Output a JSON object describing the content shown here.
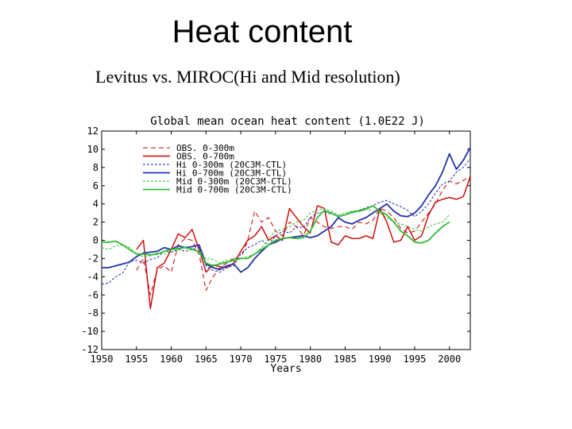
{
  "slide": {
    "title": "Heat content",
    "subtitle": "Levitus vs. MIROC(Hi and Mid resolution)"
  },
  "chart_data": {
    "type": "line",
    "title": "Global mean ocean heat content (1.0E22 J)",
    "xlabel": "Years",
    "ylabel": "",
    "xlim": [
      1950,
      2003
    ],
    "ylim": [
      -12,
      12
    ],
    "xticks": [
      "1950",
      "1955",
      "1960",
      "1965",
      "1970",
      "1975",
      "1980",
      "1985",
      "1990",
      "1995",
      "2000"
    ],
    "yticks": [
      "12",
      "10",
      "8",
      "6",
      "4",
      "2",
      "0",
      "-2",
      "-4",
      "-6",
      "-8",
      "-10",
      "-12"
    ],
    "legend_position": "top-left",
    "series": [
      {
        "name": "OBS. 0-300m",
        "color": "#cc0000",
        "width": 1.0,
        "dash": "6,4",
        "x": [
          1955,
          1956,
          1957,
          1958,
          1959,
          1960,
          1961,
          1962,
          1963,
          1964,
          1965,
          1966,
          1967,
          1968,
          1969,
          1970,
          1971,
          1972,
          1973,
          1974,
          1975,
          1976,
          1977,
          1978,
          1979,
          1980,
          1981,
          1982,
          1983,
          1984,
          1985,
          1986,
          1987,
          1988,
          1989,
          1990,
          1991,
          1992,
          1993,
          1994,
          1995,
          1996,
          1997,
          1998,
          1999,
          2000,
          2001,
          2002,
          2003
        ],
        "y": [
          -3.3,
          -2.0,
          -6.0,
          -3.2,
          -2.8,
          -3.5,
          -0.5,
          0.2,
          0.0,
          -1.5,
          -5.5,
          -4.0,
          -3.0,
          -2.5,
          -2.0,
          -2.0,
          0.0,
          3.2,
          2.0,
          2.5,
          1.0,
          0.5,
          2.0,
          1.5,
          0.5,
          2.5,
          2.0,
          1.5,
          1.3,
          1.5,
          1.5,
          1.2,
          2.0,
          1.8,
          2.2,
          3.5,
          3.2,
          2.5,
          1.3,
          0.8,
          1.0,
          2.0,
          3.0,
          4.0,
          5.5,
          6.5,
          6.2,
          6.6,
          7.0
        ]
      },
      {
        "name": "OBS. 0-700m",
        "color": "#cc0000",
        "width": 1.4,
        "dash": "",
        "x": [
          1955,
          1956,
          1957,
          1958,
          1959,
          1960,
          1961,
          1962,
          1963,
          1964,
          1965,
          1966,
          1967,
          1968,
          1969,
          1970,
          1971,
          1972,
          1973,
          1974,
          1975,
          1976,
          1977,
          1978,
          1979,
          1980,
          1981,
          1982,
          1983,
          1984,
          1985,
          1986,
          1987,
          1988,
          1989,
          1990,
          1991,
          1992,
          1993,
          1994,
          1995,
          1996,
          1997,
          1998,
          1999,
          2000,
          2001,
          2002,
          2003
        ],
        "y": [
          -1.0,
          0.0,
          -7.5,
          -3.0,
          -2.5,
          -1.0,
          0.7,
          0.3,
          1.2,
          -1.0,
          -3.5,
          -2.7,
          -2.9,
          -3.0,
          -2.5,
          -1.2,
          0.0,
          0.5,
          1.5,
          0.0,
          0.5,
          0.0,
          3.5,
          2.5,
          1.5,
          0.8,
          3.8,
          3.5,
          -0.2,
          -0.5,
          0.5,
          0.2,
          0.2,
          0.5,
          0.2,
          3.5,
          2.0,
          -0.2,
          0.0,
          1.5,
          0.0,
          0.5,
          2.8,
          4.2,
          4.5,
          4.7,
          4.5,
          4.8,
          7.0
        ]
      },
      {
        "name": "Hi  0-300m (20C3M-CTL)",
        "color": "#2233aa",
        "width": 1.0,
        "dash": "3,2",
        "x": [
          1950,
          1951,
          1952,
          1953,
          1954,
          1955,
          1956,
          1957,
          1958,
          1959,
          1960,
          1961,
          1962,
          1963,
          1964,
          1965,
          1966,
          1967,
          1968,
          1969,
          1970,
          1971,
          1972,
          1973,
          1974,
          1975,
          1976,
          1977,
          1978,
          1979,
          1980,
          1981,
          1982,
          1983,
          1984,
          1985,
          1986,
          1987,
          1988,
          1989,
          1990,
          1991,
          1992,
          1993,
          1994,
          1995,
          1996,
          1997,
          1998,
          1999,
          2000,
          2001,
          2002,
          2003
        ],
        "y": [
          -4.8,
          -4.7,
          -4.0,
          -3.6,
          -2.3,
          -2.2,
          -2.5,
          -2.1,
          -1.9,
          -1.2,
          -1.3,
          -1.0,
          -1.2,
          -1.0,
          -0.8,
          -2.8,
          -3.3,
          -3.5,
          -3.0,
          -2.8,
          -1.5,
          -0.8,
          -0.5,
          0.0,
          -0.5,
          0.5,
          1.0,
          0.8,
          1.5,
          1.4,
          2.5,
          3.0,
          3.1,
          2.9,
          2.7,
          2.8,
          3.0,
          3.3,
          3.6,
          3.8,
          4.2,
          4.4,
          4.0,
          3.7,
          3.3,
          2.6,
          3.2,
          4.0,
          5.2,
          6.2,
          6.5,
          7.5,
          8.0,
          9.0
        ]
      },
      {
        "name": "Hi  0-700m (20C3M-CTL)",
        "color": "#2233aa",
        "width": 1.8,
        "dash": "",
        "x": [
          1950,
          1951,
          1952,
          1953,
          1954,
          1955,
          1956,
          1957,
          1958,
          1959,
          1960,
          1961,
          1962,
          1963,
          1964,
          1965,
          1966,
          1967,
          1968,
          1969,
          1970,
          1971,
          1972,
          1973,
          1974,
          1975,
          1976,
          1977,
          1978,
          1979,
          1980,
          1981,
          1982,
          1983,
          1984,
          1985,
          1986,
          1987,
          1988,
          1989,
          1990,
          1991,
          1992,
          1993,
          1994,
          1995,
          1996,
          1997,
          1998,
          1999,
          2000,
          2001,
          2002,
          2003
        ],
        "y": [
          -3.0,
          -3.0,
          -2.8,
          -2.6,
          -2.4,
          -1.8,
          -1.4,
          -1.3,
          -1.2,
          -0.8,
          -1.0,
          -0.6,
          -0.8,
          -0.7,
          -0.5,
          -2.6,
          -3.0,
          -3.2,
          -2.8,
          -2.6,
          -3.5,
          -3.0,
          -2.0,
          -1.2,
          -0.5,
          -0.2,
          0.2,
          0.3,
          0.4,
          0.5,
          0.3,
          0.5,
          1.0,
          1.5,
          2.5,
          2.0,
          1.8,
          2.2,
          2.5,
          3.0,
          3.5,
          4.0,
          3.2,
          2.7,
          2.6,
          3.0,
          3.8,
          5.0,
          6.0,
          7.5,
          9.5,
          7.8,
          8.8,
          10.2
        ]
      },
      {
        "name": "Mid 0-300m (20C3M-CTL)",
        "color": "#33bb33",
        "width": 1.0,
        "dash": "3,2",
        "x": [
          1950,
          1951,
          1952,
          1953,
          1954,
          1955,
          1956,
          1957,
          1958,
          1959,
          1960,
          1961,
          1962,
          1963,
          1964,
          1965,
          1966,
          1967,
          1968,
          1969,
          1970,
          1971,
          1972,
          1973,
          1974,
          1975,
          1976,
          1977,
          1978,
          1979,
          1980,
          1981,
          1982,
          1983,
          1984,
          1985,
          1986,
          1987,
          1988,
          1989,
          1990,
          1991,
          1992,
          1993,
          1994,
          1995,
          1996,
          1997,
          1998,
          1999,
          2000
        ],
        "y": [
          -0.8,
          -1.0,
          -0.6,
          -0.5,
          -0.8,
          -1.5,
          -1.8,
          -1.7,
          -1.4,
          -1.5,
          -1.3,
          -1.1,
          -0.8,
          -0.9,
          -1.5,
          -2.0,
          -2.1,
          -2.5,
          -2.2,
          -2.0,
          -2.0,
          -1.8,
          -1.5,
          -0.8,
          0.2,
          1.0,
          1.2,
          1.5,
          2.0,
          2.2,
          3.0,
          3.3,
          3.5,
          3.2,
          2.8,
          3.0,
          3.2,
          3.3,
          3.5,
          3.2,
          3.0,
          2.5,
          2.0,
          1.8,
          1.5,
          1.2,
          1.0,
          1.5,
          1.8,
          2.0,
          2.8
        ]
      },
      {
        "name": "Mid 0-700m (20C3M-CTL)",
        "color": "#33bb33",
        "width": 1.8,
        "dash": "",
        "x": [
          1950,
          1951,
          1952,
          1953,
          1954,
          1955,
          1956,
          1957,
          1958,
          1959,
          1960,
          1961,
          1962,
          1963,
          1964,
          1965,
          1966,
          1967,
          1968,
          1969,
          1970,
          1971,
          1972,
          1973,
          1974,
          1975,
          1976,
          1977,
          1978,
          1979,
          1980,
          1981,
          1982,
          1983,
          1984,
          1985,
          1986,
          1987,
          1988,
          1989,
          1990,
          1991,
          1992,
          1993,
          1994,
          1995,
          1996,
          1997,
          1998,
          1999,
          2000
        ],
        "y": [
          -0.2,
          -0.2,
          -0.1,
          -0.5,
          -1.0,
          -1.5,
          -1.5,
          -1.6,
          -1.5,
          -1.2,
          -1.0,
          -0.9,
          -0.8,
          -1.0,
          -1.2,
          -2.5,
          -2.8,
          -2.6,
          -2.4,
          -2.2,
          -2.0,
          -2.0,
          -1.5,
          -1.0,
          -0.5,
          0.0,
          0.2,
          0.3,
          0.2,
          0.3,
          1.0,
          2.5,
          3.3,
          3.0,
          2.6,
          2.8,
          3.1,
          3.2,
          3.4,
          3.8,
          3.2,
          2.8,
          2.0,
          1.0,
          0.5,
          -0.2,
          -0.3,
          0.0,
          0.8,
          1.5,
          2.0
        ]
      }
    ]
  }
}
